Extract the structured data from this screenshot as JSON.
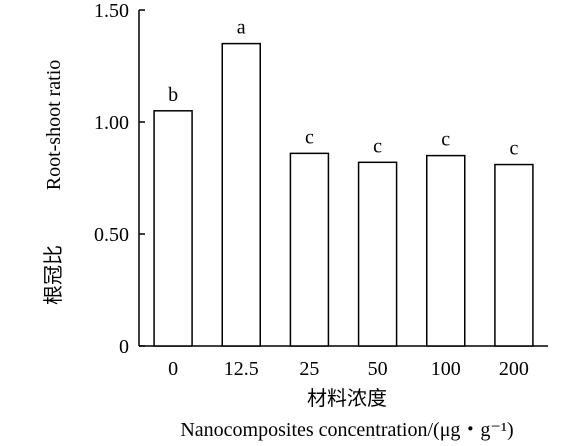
{
  "chart_data": {
    "type": "bar",
    "categories": [
      "0",
      "12.5",
      "25",
      "50",
      "100",
      "200"
    ],
    "values": [
      1.05,
      1.35,
      0.86,
      0.82,
      0.85,
      0.81
    ],
    "bar_labels": [
      "b",
      "a",
      "c",
      "c",
      "c",
      "c"
    ],
    "ylim": [
      0,
      1.5
    ],
    "yticks": [
      0,
      0.5,
      1.0,
      1.5
    ],
    "ytick_labels": [
      "0",
      "0.50",
      "1.00",
      "1.50"
    ],
    "ylabel_cn": "根冠比",
    "ylabel_en": "Root-shoot ratio",
    "xlabel_cn": "材料浓度",
    "xlabel_en": "Nanocomposites concentration/(μg・g⁻¹)",
    "grid": false,
    "bar_fill": "#ffffff",
    "bar_stroke": "#000000"
  }
}
